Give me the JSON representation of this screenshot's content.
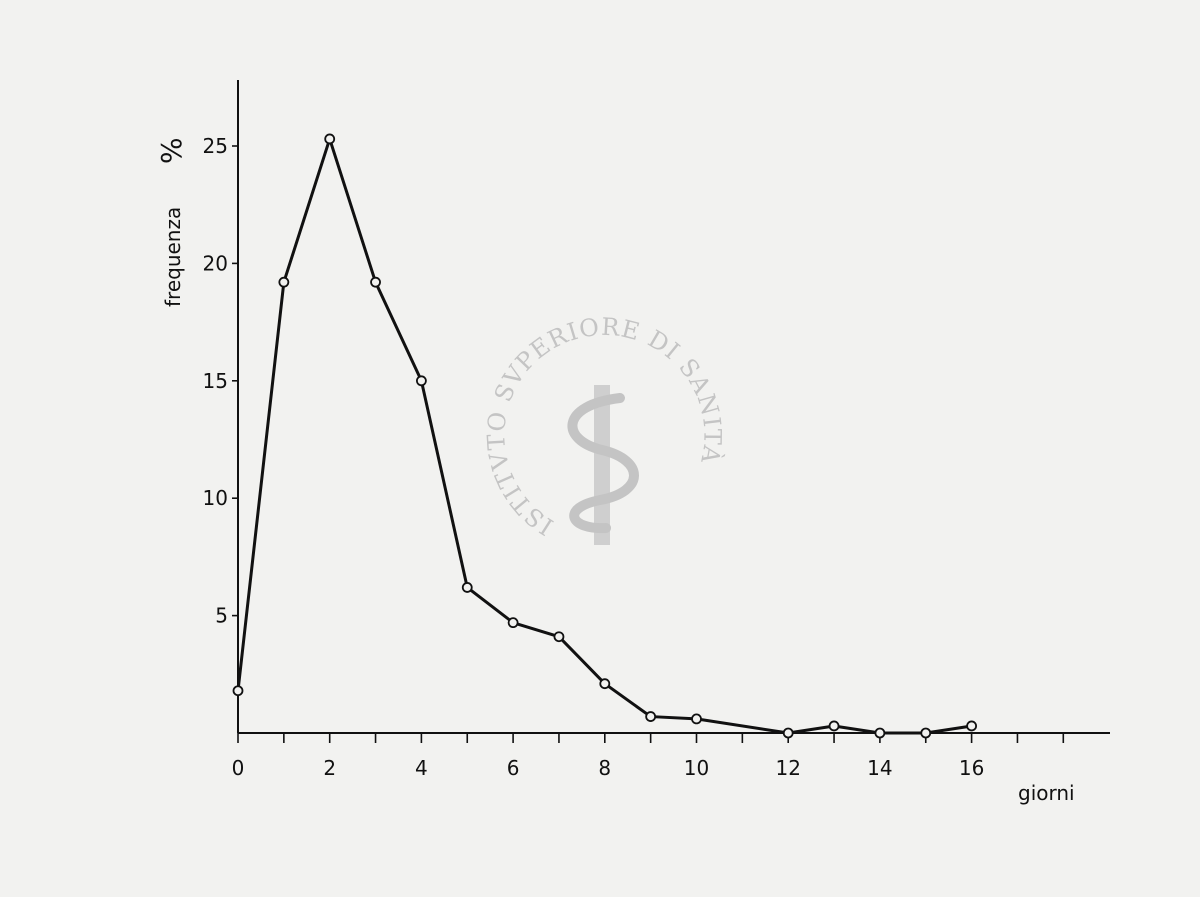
{
  "chart_data": {
    "type": "line",
    "xlabel": "giorni",
    "ylabel": "frequenza",
    "yunit": "%",
    "xlim": [
      0,
      19
    ],
    "ylim": [
      0,
      28
    ],
    "xticks_labeled": [
      0,
      2,
      4,
      6,
      8,
      10,
      12,
      14,
      16
    ],
    "xticks_minor": [
      1,
      3,
      5,
      7,
      9,
      11,
      13,
      15,
      17,
      18
    ],
    "yticks": [
      5,
      10,
      15,
      20,
      25
    ],
    "grid": false,
    "series": [
      {
        "x": [
          0,
          1,
          2,
          3,
          4,
          5,
          6,
          7,
          8,
          9,
          10,
          12,
          13,
          14,
          15,
          16
        ],
        "y": [
          1.8,
          19.2,
          25.3,
          19.2,
          15.0,
          6.2,
          4.7,
          4.1,
          2.1,
          0.7,
          0.6,
          0.0,
          0.3,
          0.0,
          0.0,
          0.3
        ]
      }
    ]
  },
  "watermark": {
    "text": "ISTITVTO SVPERIORE DI SANITÀ",
    "emblem": "staff-with-serpent-icon"
  }
}
